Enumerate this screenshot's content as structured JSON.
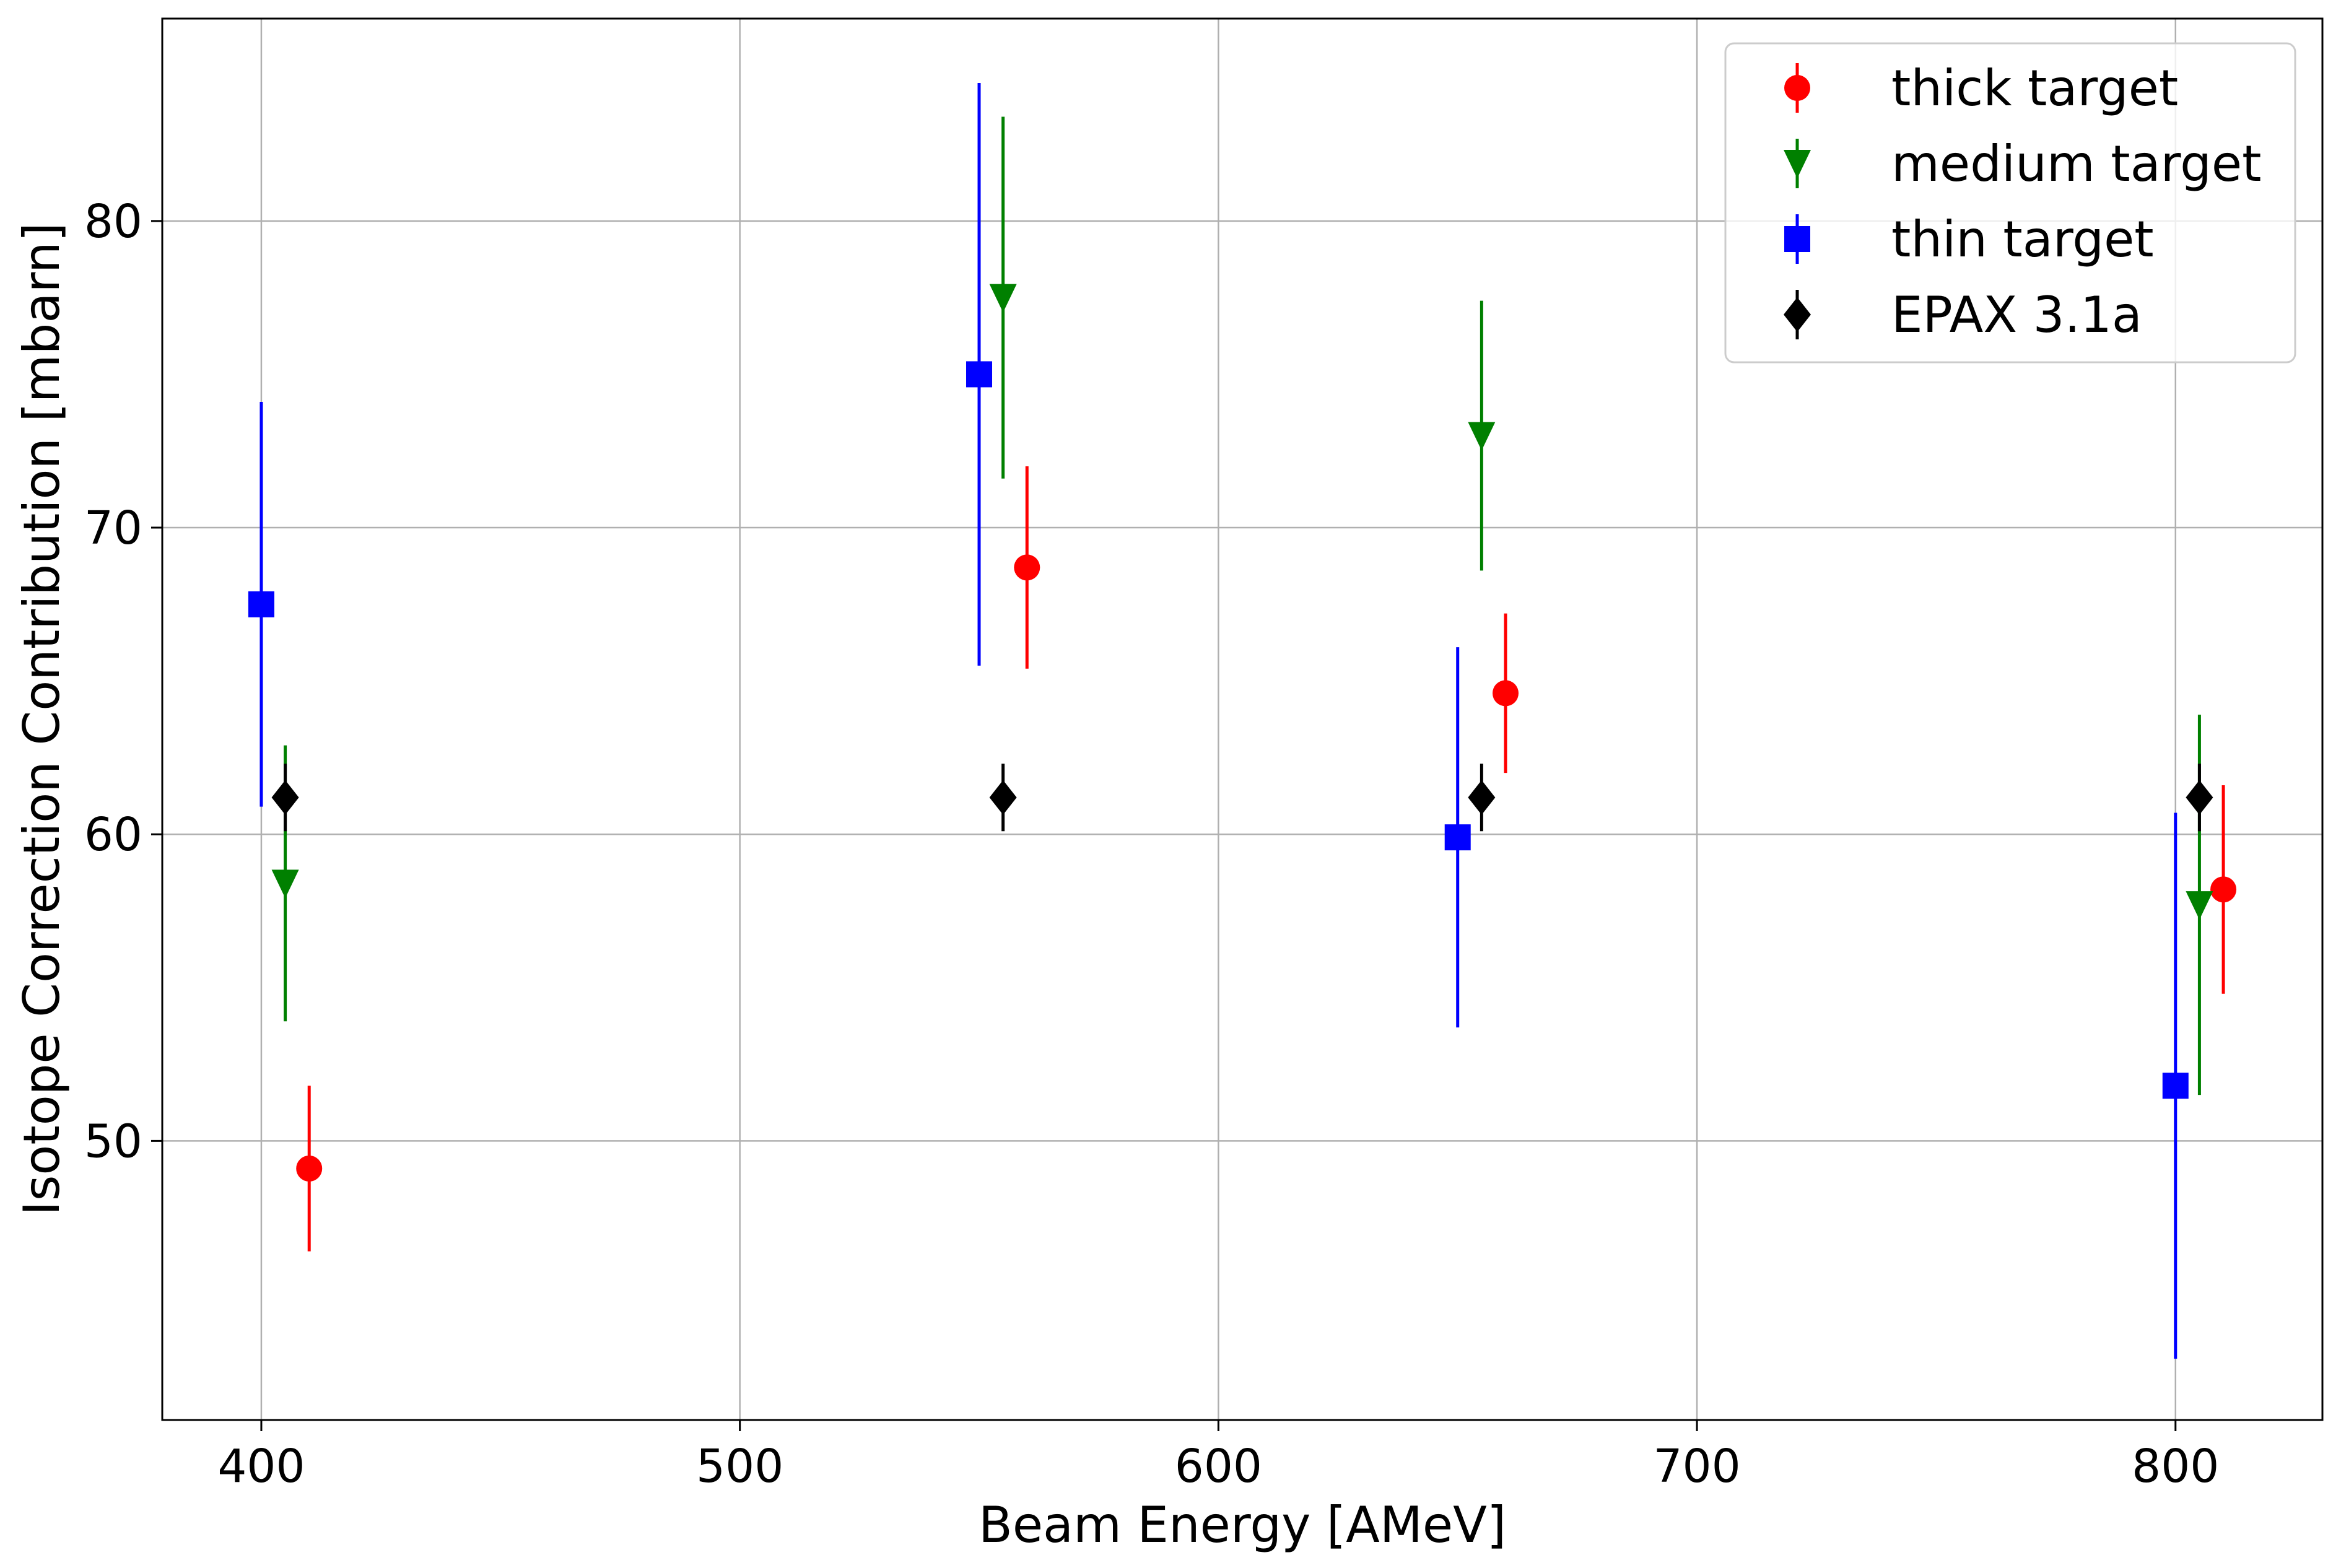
{
  "chart_data": {
    "type": "scatter",
    "title": "",
    "xlabel": "Beam Energy [AMeV]",
    "ylabel": "Isotope Correction Contribution [mbarn]",
    "xlim": [
      379.3,
      830.7
    ],
    "ylim": [
      40.9,
      86.6
    ],
    "xticks": [
      400,
      500,
      600,
      700,
      800
    ],
    "yticks": [
      50,
      60,
      70,
      80
    ],
    "grid": true,
    "legend_position": "top-right",
    "series": [
      {
        "name": "thick target",
        "color": "#ff0000",
        "marker": "circle",
        "points": [
          {
            "x": 410,
            "y": 49.1,
            "err": 2.7
          },
          {
            "x": 560,
            "y": 68.7,
            "err": 3.3
          },
          {
            "x": 660,
            "y": 64.6,
            "err": 2.6
          },
          {
            "x": 810,
            "y": 58.2,
            "err": 3.4
          }
        ]
      },
      {
        "name": "medium target",
        "color": "#008000",
        "marker": "triangle-down",
        "points": [
          {
            "x": 405,
            "y": 58.4,
            "err": 4.5
          },
          {
            "x": 555,
            "y": 77.5,
            "err": 5.9
          },
          {
            "x": 655,
            "y": 73.0,
            "err": 4.4
          },
          {
            "x": 805,
            "y": 57.7,
            "err": 6.2
          }
        ]
      },
      {
        "name": "thin target",
        "color": "#0000ff",
        "marker": "square",
        "points": [
          {
            "x": 400,
            "y": 67.5,
            "err": 6.6
          },
          {
            "x": 550,
            "y": 75.0,
            "err": 9.5
          },
          {
            "x": 650,
            "y": 59.9,
            "err": 6.2
          },
          {
            "x": 800,
            "y": 51.8,
            "err": 8.9
          }
        ]
      },
      {
        "name": "EPAX 3.1a",
        "color": "#000000",
        "marker": "diamond",
        "points": [
          {
            "x": 405,
            "y": 61.2,
            "err": 1.1
          },
          {
            "x": 555,
            "y": 61.2,
            "err": 1.1
          },
          {
            "x": 655,
            "y": 61.2,
            "err": 1.1
          },
          {
            "x": 805,
            "y": 61.2,
            "err": 1.1
          }
        ]
      }
    ]
  }
}
